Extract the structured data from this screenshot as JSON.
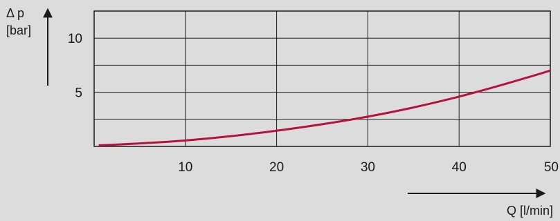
{
  "chart_data": {
    "type": "line",
    "title": "",
    "xlabel": "Q [l/min]",
    "ylabel_symbol": "Δ p",
    "ylabel_unit": "[bar]",
    "xlim": [
      0,
      50
    ],
    "ylim": [
      0,
      12.5
    ],
    "x_ticks": [
      10,
      20,
      30,
      40,
      50
    ],
    "y_ticks": [
      5,
      10
    ],
    "x_ticks_labels": [
      "10",
      "20",
      "30",
      "40",
      "50"
    ],
    "y_ticks_labels": [
      "5",
      "10"
    ],
    "grid": true,
    "series": [
      {
        "x": [
          0.5,
          5,
          10,
          15,
          20,
          25,
          30,
          35,
          40,
          45,
          50
        ],
        "values": [
          0.1,
          0.28,
          0.55,
          0.95,
          1.45,
          2.05,
          2.75,
          3.6,
          4.6,
          5.75,
          7.0
        ]
      }
    ],
    "colors": {
      "background": "#dcdcdc",
      "plot_background": "#dcdcdc",
      "grid": "#1a1a1a",
      "curve": "#b5123e"
    }
  }
}
